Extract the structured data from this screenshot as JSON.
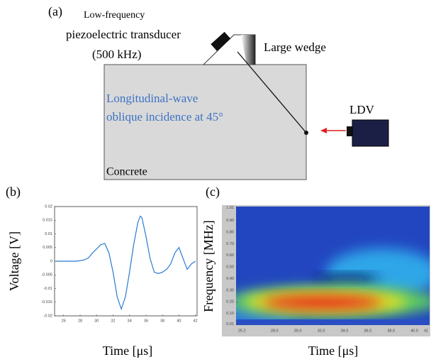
{
  "panel_a": {
    "label": "(a)",
    "transducer_label": [
      "Low-frequency",
      "piezoelectric transducer",
      "(500 kHz)"
    ],
    "wedge_label": "Large wedge",
    "wave_label": [
      "Longitudinal-wave",
      "oblique incidence at 45°"
    ],
    "ldv_label": "LDV",
    "material_label": "Concrete"
  },
  "chart_data": [
    {
      "type": "line",
      "label": "(b)",
      "xlabel": "Time [μs]",
      "ylabel": "Voltage [V]",
      "x": [
        25,
        25.5,
        26,
        26.5,
        27,
        27.5,
        28,
        28.5,
        29,
        29.5,
        30,
        30.5,
        31,
        31.5,
        32,
        32.5,
        33,
        33.5,
        34,
        34.5,
        35,
        35.3,
        35.5,
        36,
        36.5,
        37,
        37.5,
        38,
        38.5,
        39,
        39.5,
        40,
        40.5,
        41,
        41.5,
        42
      ],
      "series": [
        {
          "color": "#2a7bd1",
          "values": [
            0,
            0,
            0,
            0,
            0,
            0,
            0.0002,
            0.0005,
            0.0012,
            0.003,
            0.0045,
            0.006,
            0.0065,
            0.003,
            -0.004,
            -0.013,
            -0.0175,
            -0.013,
            -0.004,
            0.006,
            0.014,
            0.0165,
            0.016,
            0.009,
            0.001,
            -0.004,
            -0.0045,
            -0.004,
            -0.003,
            -0.001,
            0.003,
            0.005,
            0.001,
            -0.003,
            -0.001,
            0
          ]
        }
      ],
      "xlim": [
        24.9,
        42.2
      ],
      "ylim": [
        -0.02,
        0.02
      ],
      "xticks": [
        26,
        28,
        30,
        32,
        34,
        36,
        38,
        40,
        42
      ],
      "yticks": [
        -0.02,
        -0.015,
        -0.01,
        -0.005,
        0,
        0.005,
        0.01,
        0.015,
        0.02
      ]
    },
    {
      "type": "heatmap",
      "label": "(c)",
      "xlabel": "Time [μs]",
      "ylabel": "Frequency [MHz]",
      "xlim": [
        24.7,
        41.3
      ],
      "ylim": [
        0,
        1.02
      ],
      "xticks": [
        25.2,
        {
          "value": 28,
          "label": "28.0"
        },
        {
          "value": 30,
          "label": "30.0"
        },
        {
          "value": 32,
          "label": "32.0"
        },
        {
          "value": 34,
          "label": "34.0"
        },
        {
          "value": 36,
          "label": "36.0"
        },
        {
          "value": 38,
          "label": "38.0"
        },
        {
          "value": 40,
          "label": "40.0"
        },
        41
      ],
      "yticks": [
        0.01,
        {
          "value": 0.1,
          "label": "0.10"
        },
        {
          "value": 0.2,
          "label": "0.20"
        },
        {
          "value": 0.3,
          "label": "0.30"
        },
        {
          "value": 0.4,
          "label": "0.40"
        },
        {
          "value": 0.5,
          "label": "0.50"
        },
        {
          "value": 0.6,
          "label": "0.60"
        },
        {
          "value": 0.7,
          "label": "0.70"
        },
        {
          "value": 0.8,
          "label": "0.80"
        },
        {
          "value": 0.9,
          "label": "0.90"
        },
        1.01
      ]
    }
  ]
}
